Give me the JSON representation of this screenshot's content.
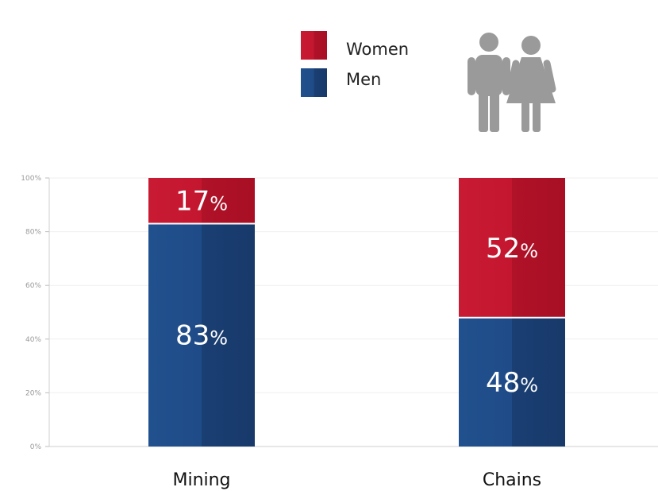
{
  "chart_data": {
    "type": "bar",
    "stacked": true,
    "categories": [
      "Mining",
      "Chains"
    ],
    "series": [
      {
        "name": "Men",
        "values": [
          83,
          48
        ],
        "labels": [
          "83%",
          "48%"
        ],
        "color": "#1f4a85"
      },
      {
        "name": "Women",
        "values": [
          17,
          52
        ],
        "labels": [
          "17%",
          "52%"
        ],
        "color": "#c4172f"
      }
    ],
    "ylim": [
      0,
      100
    ],
    "yticks": [
      0,
      20,
      40,
      60,
      80,
      100
    ],
    "ytick_labels": [
      "0%",
      "20%",
      "40%",
      "60%",
      "80%",
      "100%"
    ],
    "grid": true,
    "legend": "top-center",
    "title": "",
    "xlabel": "",
    "ylabel": ""
  },
  "colors": {
    "men": "#1f4a85",
    "women": "#c4172f",
    "icon": "#9a9a9a",
    "grid": "#efefef"
  },
  "icon": "people-couple-icon"
}
